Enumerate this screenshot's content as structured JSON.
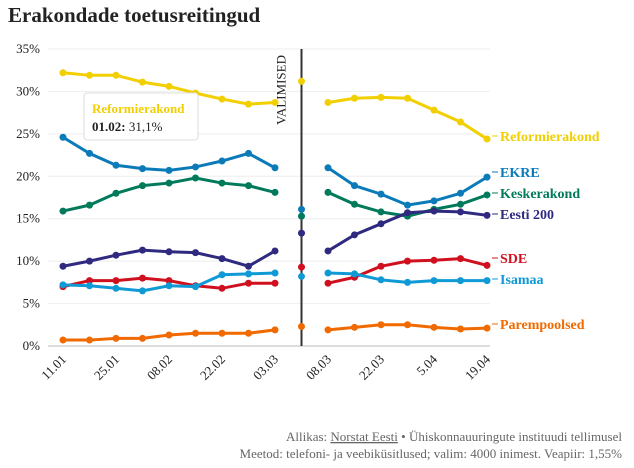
{
  "chart_data": {
    "type": "line",
    "title": "Erakondade toetusreitingud",
    "categories": [
      "11.01",
      null,
      "25.01",
      null,
      "08.02",
      null,
      "22.02",
      null,
      "03.03",
      null,
      "08.03",
      null,
      "22.03",
      null,
      "5.04",
      null,
      "19.04"
    ],
    "ylim": [
      0,
      35
    ],
    "yticks": [
      {
        "value": 0,
        "label": "0%"
      },
      {
        "value": 5,
        "label": "5%"
      },
      {
        "value": 10,
        "label": "10%"
      },
      {
        "value": 15,
        "label": "15%"
      },
      {
        "value": 20,
        "label": "20%"
      },
      {
        "value": 25,
        "label": "25%"
      },
      {
        "value": 30,
        "label": "30%"
      },
      {
        "value": 35,
        "label": "35%"
      }
    ],
    "grid": true,
    "election_label": "VALIMISED",
    "election_index": 9,
    "series": [
      {
        "name": "Reformierakond",
        "color": "#f2cf00",
        "values": [
          32.2,
          31.9,
          31.9,
          31.1,
          30.6,
          29.8,
          29.1,
          28.5,
          28.7,
          null,
          28.7,
          29.2,
          29.3,
          29.2,
          27.8,
          26.4,
          24.4
        ],
        "election_result": 31.2
      },
      {
        "name": "EKRE",
        "color": "#0b7ab8",
        "values": [
          24.6,
          22.7,
          21.3,
          20.9,
          20.7,
          21.1,
          21.8,
          22.7,
          21.0,
          null,
          21.0,
          18.9,
          17.9,
          16.6,
          17.1,
          18.0,
          19.9
        ],
        "election_result": 16.1
      },
      {
        "name": "Keskerakond",
        "color": "#007a5a",
        "values": [
          15.9,
          16.6,
          18.0,
          18.9,
          19.2,
          19.8,
          19.2,
          18.9,
          18.1,
          null,
          18.1,
          16.7,
          15.8,
          15.3,
          16.1,
          16.7,
          17.8
        ],
        "election_result": 15.3
      },
      {
        "name": "Eesti 200",
        "color": "#2f2a80",
        "values": [
          9.4,
          10.0,
          10.7,
          11.3,
          11.1,
          11.0,
          10.3,
          9.4,
          11.2,
          null,
          11.2,
          13.1,
          14.4,
          15.7,
          15.9,
          15.8,
          15.4
        ],
        "election_result": 13.3
      },
      {
        "name": "SDE",
        "color": "#d0101e",
        "values": [
          7.0,
          7.7,
          7.7,
          8.0,
          7.7,
          7.1,
          6.8,
          7.4,
          7.4,
          null,
          7.4,
          8.1,
          9.4,
          10.0,
          10.1,
          10.3,
          9.5
        ],
        "election_result": 9.3
      },
      {
        "name": "Isamaa",
        "color": "#0f9ad6",
        "values": [
          7.2,
          7.1,
          6.8,
          6.5,
          7.1,
          7.0,
          8.4,
          8.5,
          8.6,
          null,
          8.6,
          8.5,
          7.8,
          7.5,
          7.7,
          7.7,
          7.7
        ],
        "election_result": 8.2
      },
      {
        "name": "Parempoolsed",
        "color": "#f06a00",
        "values": [
          0.7,
          0.7,
          0.9,
          0.9,
          1.3,
          1.5,
          1.5,
          1.5,
          1.9,
          null,
          1.9,
          2.2,
          2.5,
          2.5,
          2.2,
          2.0,
          2.1
        ],
        "election_result": 2.3
      }
    ],
    "tooltip": {
      "title": "Reformierakond",
      "date": "01.02:",
      "value": "31,1%"
    },
    "footer": {
      "source_prefix": "Allikas:",
      "source_link": "Norstat Eesti",
      "source_suffix": "• Ühiskonnauuringute instituudi tellimusel",
      "method": "Meetod: telefoni- ja veebiküsitlused; valim: 4000 inimest. Veapiir: 1,55%"
    }
  }
}
